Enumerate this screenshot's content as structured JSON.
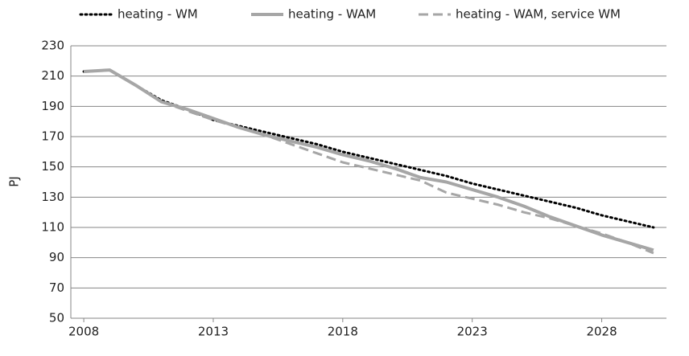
{
  "chart_data": {
    "type": "line",
    "y_label": "PJ",
    "x": [
      2008,
      2009,
      2010,
      2011,
      2012,
      2013,
      2014,
      2015,
      2016,
      2017,
      2018,
      2019,
      2020,
      2021,
      2022,
      2023,
      2024,
      2025,
      2026,
      2027,
      2028,
      2029,
      2030
    ],
    "series": [
      {
        "name": "heating - WM",
        "color": "#000000",
        "style": "dotted",
        "values": [
          213,
          214,
          204,
          194,
          188,
          181,
          177,
          173,
          169,
          165,
          160,
          156,
          152,
          148,
          144,
          139,
          135,
          131,
          127,
          123,
          118,
          114,
          110
        ]
      },
      {
        "name": "heating - WAM",
        "color": "#a6a6a6",
        "style": "solid",
        "values": [
          213,
          214,
          204,
          193,
          188,
          182,
          176,
          171,
          167,
          163,
          158,
          154,
          149,
          143,
          140,
          135,
          130,
          124,
          117,
          111,
          105,
          100,
          95
        ]
      },
      {
        "name": "heating - WAM, service WM",
        "color": "#a6a6a6",
        "style": "dashed",
        "values": [
          213,
          214,
          204,
          193,
          187,
          181,
          176,
          171,
          165,
          159,
          153,
          149,
          145,
          141,
          133,
          129,
          125,
          120,
          116,
          111,
          106,
          100,
          93
        ]
      }
    ],
    "xlim": [
      2007.5,
      2030.5
    ],
    "xticks": [
      2008,
      2013,
      2018,
      2023,
      2028
    ],
    "ylim": [
      50,
      230
    ],
    "yticks": [
      50,
      70,
      90,
      110,
      130,
      150,
      170,
      190,
      210,
      230
    ],
    "grid": true,
    "legend": "top"
  }
}
